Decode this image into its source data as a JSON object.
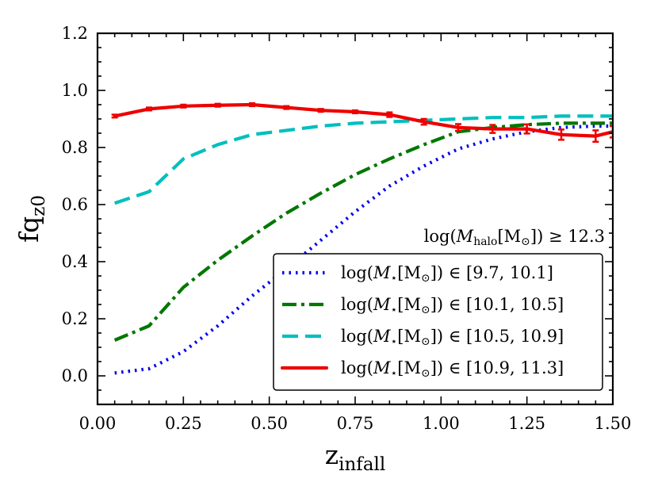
{
  "chart_data": {
    "type": "line",
    "title": "",
    "xlabel": {
      "main": "z",
      "sub": "infall"
    },
    "ylabel": {
      "main": "fq",
      "sub": "z0"
    },
    "xlim": [
      0.0,
      1.5
    ],
    "ylim": [
      -0.1,
      1.2
    ],
    "xticks": [
      0.0,
      0.25,
      0.5,
      0.75,
      1.0,
      1.25,
      1.5
    ],
    "xtick_labels": [
      "0.00",
      "0.25",
      "0.50",
      "0.75",
      "1.00",
      "1.25",
      "1.50"
    ],
    "yticks": [
      0.0,
      0.2,
      0.4,
      0.6,
      0.8,
      1.0,
      1.2
    ],
    "ytick_labels": [
      "0.0",
      "0.2",
      "0.4",
      "0.6",
      "0.8",
      "1.0",
      "1.2"
    ],
    "annotation": {
      "prefix": "log(",
      "var": "M",
      "sub": "halo",
      "mid": "[M",
      "sun": "⊙",
      "suffix": "]) ≥ 12.3"
    },
    "legend_location": "lower-right",
    "series": [
      {
        "name": "log(M⋆[M⊙]) ∈ [9.7, 10.1]",
        "range": "[9.7, 10.1]",
        "color": "#0000ee",
        "style": "dotted",
        "x": [
          0.05,
          0.15,
          0.25,
          0.35,
          0.45,
          0.55,
          0.65,
          0.75,
          0.85,
          0.95,
          1.05,
          1.15,
          1.25,
          1.35,
          1.45,
          1.5
        ],
        "y": [
          0.01,
          0.025,
          0.085,
          0.175,
          0.28,
          0.375,
          0.475,
          0.575,
          0.665,
          0.735,
          0.795,
          0.83,
          0.855,
          0.87,
          0.875,
          0.875
        ],
        "errorbars": false
      },
      {
        "name": "log(M⋆[M⊙]) ∈ [10.1, 10.5]",
        "range": "[10.1, 10.5]",
        "color": "#007700",
        "style": "dashdot",
        "x": [
          0.05,
          0.15,
          0.25,
          0.35,
          0.45,
          0.55,
          0.65,
          0.75,
          0.85,
          0.95,
          1.05,
          1.15,
          1.25,
          1.35,
          1.45,
          1.5
        ],
        "y": [
          0.125,
          0.175,
          0.31,
          0.405,
          0.49,
          0.57,
          0.64,
          0.705,
          0.76,
          0.81,
          0.855,
          0.87,
          0.88,
          0.885,
          0.885,
          0.885
        ],
        "errorbars": false
      },
      {
        "name": "log(M⋆[M⊙]) ∈ [10.5, 10.9]",
        "range": "[10.5, 10.9]",
        "color": "#00bfbf",
        "style": "dashed",
        "x": [
          0.05,
          0.15,
          0.25,
          0.35,
          0.45,
          0.55,
          0.65,
          0.75,
          0.85,
          0.95,
          1.05,
          1.15,
          1.25,
          1.35,
          1.45,
          1.5
        ],
        "y": [
          0.605,
          0.645,
          0.76,
          0.81,
          0.845,
          0.86,
          0.875,
          0.885,
          0.89,
          0.895,
          0.9,
          0.905,
          0.905,
          0.91,
          0.91,
          0.91
        ],
        "errorbars": false
      },
      {
        "name": "log(M⋆[M⊙]) ∈ [10.9, 11.3]",
        "range": "[10.9, 11.3]",
        "color": "#ee0000",
        "style": "solid",
        "x": [
          0.05,
          0.15,
          0.25,
          0.35,
          0.45,
          0.55,
          0.65,
          0.75,
          0.85,
          0.95,
          1.05,
          1.15,
          1.25,
          1.35,
          1.45,
          1.5
        ],
        "y": [
          0.91,
          0.935,
          0.945,
          0.948,
          0.95,
          0.94,
          0.93,
          0.925,
          0.915,
          0.89,
          0.87,
          0.865,
          0.865,
          0.845,
          0.84,
          0.855
        ],
        "errorbars": true,
        "error": [
          0.005,
          0.005,
          0.005,
          0.005,
          0.005,
          0.005,
          0.005,
          0.005,
          0.008,
          0.01,
          0.012,
          0.014,
          0.016,
          0.018,
          0.02,
          0.02
        ]
      }
    ]
  }
}
